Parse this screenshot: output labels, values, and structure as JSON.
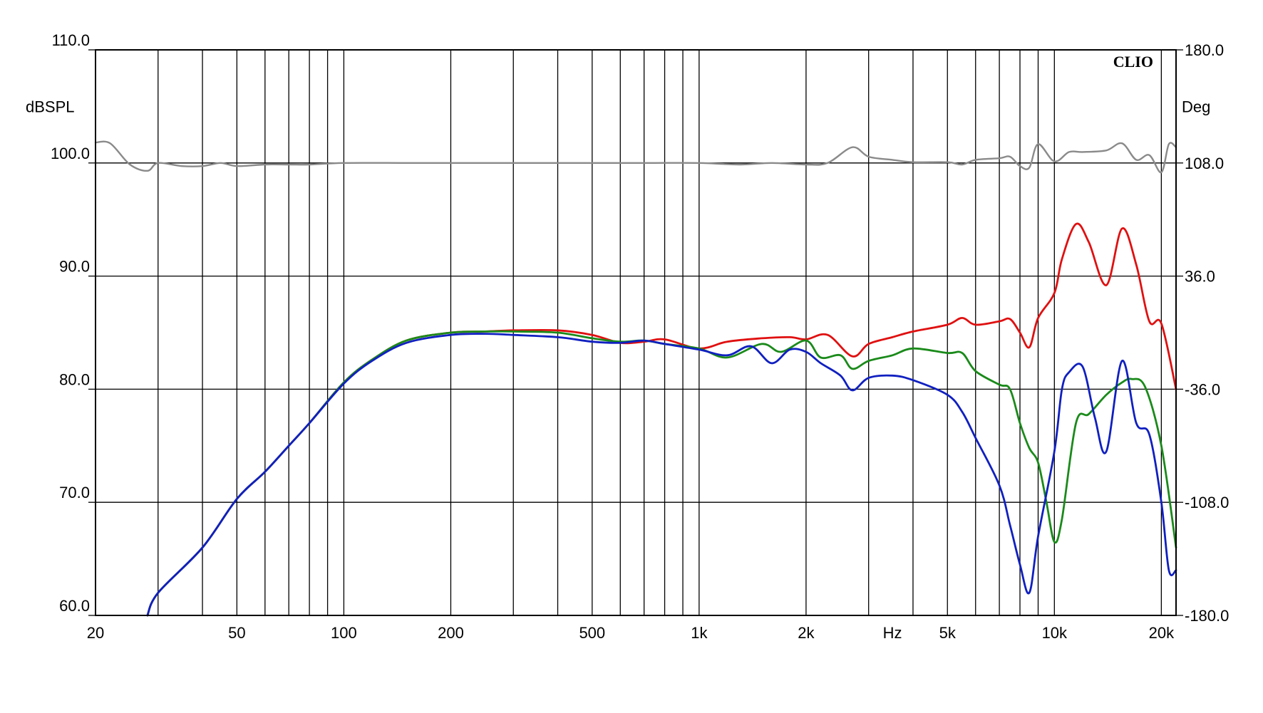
{
  "chart_data": {
    "type": "line",
    "brand": "CLIO",
    "left_axis": {
      "unit": "dBSPL",
      "range": [
        60,
        110
      ],
      "ticks": [
        "60.0",
        "70.0",
        "80.0",
        "90.0",
        "100.0",
        "110.0"
      ],
      "values": [
        60,
        70,
        80,
        90,
        100,
        110
      ]
    },
    "right_axis": {
      "unit": "Deg",
      "range": [
        -180,
        180
      ],
      "ticks": [
        "-180.0",
        "-108.0",
        "-36.0",
        "36.0",
        "108.0",
        "180.0"
      ],
      "values": [
        -180,
        -108,
        -36,
        36,
        108,
        180
      ]
    },
    "x_axis": {
      "unit": "Hz",
      "scale": "log",
      "range": [
        20,
        22000
      ],
      "tick_labels": [
        {
          "value": 20,
          "label": "20"
        },
        {
          "value": 50,
          "label": "50"
        },
        {
          "value": 100,
          "label": "100"
        },
        {
          "value": 200,
          "label": "200"
        },
        {
          "value": 500,
          "label": "500"
        },
        {
          "value": 1000,
          "label": "1k"
        },
        {
          "value": 2000,
          "label": "2k"
        },
        {
          "value": 5000,
          "label": "5k"
        },
        {
          "value": 10000,
          "label": "10k"
        },
        {
          "value": 20000,
          "label": "20k"
        }
      ],
      "gridlines": [
        20,
        30,
        40,
        50,
        60,
        70,
        80,
        90,
        100,
        200,
        300,
        400,
        500,
        600,
        700,
        800,
        900,
        1000,
        2000,
        3000,
        4000,
        5000,
        6000,
        7000,
        8000,
        9000,
        10000,
        20000,
        22000
      ]
    },
    "grid": true,
    "series": [
      {
        "color": "#e01010",
        "axis": "left",
        "points": [
          [
            28,
            60
          ],
          [
            30,
            62
          ],
          [
            40,
            66
          ],
          [
            50,
            70.3
          ],
          [
            60,
            72.7
          ],
          [
            70,
            75
          ],
          [
            80,
            77
          ],
          [
            100,
            80.6
          ],
          [
            120,
            82.6
          ],
          [
            150,
            84.3
          ],
          [
            200,
            85
          ],
          [
            250,
            85.1
          ],
          [
            300,
            85.2
          ],
          [
            400,
            85.2
          ],
          [
            500,
            84.8
          ],
          [
            600,
            84.1
          ],
          [
            700,
            84.2
          ],
          [
            800,
            84.4
          ],
          [
            1000,
            83.6
          ],
          [
            1200,
            84.2
          ],
          [
            1500,
            84.5
          ],
          [
            1800,
            84.6
          ],
          [
            2000,
            84.4
          ],
          [
            2300,
            84.8
          ],
          [
            2700,
            82.9
          ],
          [
            3000,
            84.0
          ],
          [
            3500,
            84.6
          ],
          [
            4000,
            85.1
          ],
          [
            5000,
            85.7
          ],
          [
            5500,
            86.3
          ],
          [
            6000,
            85.7
          ],
          [
            7000,
            86.0
          ],
          [
            7500,
            86.2
          ],
          [
            8000,
            85.0
          ],
          [
            8500,
            83.7
          ],
          [
            9000,
            86.3
          ],
          [
            10000,
            88.5
          ],
          [
            10500,
            91.5
          ],
          [
            11500,
            94.6
          ],
          [
            12500,
            93.0
          ],
          [
            14000,
            89.2
          ],
          [
            15500,
            94.2
          ],
          [
            17000,
            91.0
          ],
          [
            18500,
            86.0
          ],
          [
            20000,
            85.8
          ],
          [
            22000,
            80.0
          ]
        ]
      },
      {
        "color": "#1a8a1a",
        "axis": "left",
        "points": [
          [
            28,
            60
          ],
          [
            30,
            62
          ],
          [
            40,
            66
          ],
          [
            50,
            70.3
          ],
          [
            60,
            72.7
          ],
          [
            70,
            75
          ],
          [
            80,
            77
          ],
          [
            100,
            80.6
          ],
          [
            120,
            82.6
          ],
          [
            150,
            84.3
          ],
          [
            200,
            85
          ],
          [
            250,
            85.1
          ],
          [
            300,
            85.1
          ],
          [
            400,
            85
          ],
          [
            500,
            84.5
          ],
          [
            600,
            84.2
          ],
          [
            700,
            84.3
          ],
          [
            800,
            84
          ],
          [
            1000,
            83.6
          ],
          [
            1200,
            82.8
          ],
          [
            1500,
            84
          ],
          [
            1700,
            83.3
          ],
          [
            2000,
            84.3
          ],
          [
            2200,
            82.8
          ],
          [
            2500,
            83
          ],
          [
            2700,
            81.8
          ],
          [
            3000,
            82.5
          ],
          [
            3500,
            83
          ],
          [
            4000,
            83.6
          ],
          [
            5000,
            83.2
          ],
          [
            5500,
            83.2
          ],
          [
            6000,
            81.6
          ],
          [
            7000,
            80.4
          ],
          [
            7500,
            80
          ],
          [
            8000,
            77.0
          ],
          [
            8500,
            74.8
          ],
          [
            9000,
            73.5
          ],
          [
            9500,
            70
          ],
          [
            10000,
            66.5
          ],
          [
            10500,
            68.5
          ],
          [
            11500,
            77.0
          ],
          [
            12500,
            77.8
          ],
          [
            14000,
            79.5
          ],
          [
            15500,
            80.6
          ],
          [
            16500,
            80.9
          ],
          [
            18000,
            80.2
          ],
          [
            20000,
            75.0
          ],
          [
            22000,
            66.0
          ]
        ]
      },
      {
        "color": "#1020c0",
        "axis": "left",
        "points": [
          [
            28,
            60
          ],
          [
            30,
            62
          ],
          [
            40,
            66
          ],
          [
            50,
            70.3
          ],
          [
            60,
            72.7
          ],
          [
            70,
            75
          ],
          [
            80,
            77
          ],
          [
            100,
            80.5
          ],
          [
            120,
            82.5
          ],
          [
            150,
            84.1
          ],
          [
            200,
            84.8
          ],
          [
            250,
            84.9
          ],
          [
            300,
            84.8
          ],
          [
            400,
            84.6
          ],
          [
            500,
            84.2
          ],
          [
            600,
            84.1
          ],
          [
            700,
            84.3
          ],
          [
            800,
            84
          ],
          [
            1000,
            83.5
          ],
          [
            1200,
            83
          ],
          [
            1400,
            83.8
          ],
          [
            1600,
            82.3
          ],
          [
            1800,
            83.5
          ],
          [
            2000,
            83.3
          ],
          [
            2200,
            82.3
          ],
          [
            2500,
            81.2
          ],
          [
            2700,
            79.9
          ],
          [
            3000,
            81.0
          ],
          [
            3500,
            81.2
          ],
          [
            4000,
            80.8
          ],
          [
            5000,
            79.5
          ],
          [
            5500,
            78
          ],
          [
            6000,
            75.7
          ],
          [
            7000,
            71.5
          ],
          [
            7500,
            68
          ],
          [
            8000,
            64.5
          ],
          [
            8500,
            62.0
          ],
          [
            9000,
            67.0
          ],
          [
            10000,
            74.5
          ],
          [
            10500,
            80
          ],
          [
            11000,
            81.5
          ],
          [
            12000,
            82.0
          ],
          [
            13000,
            77.5
          ],
          [
            14000,
            74.5
          ],
          [
            15500,
            82.5
          ],
          [
            17000,
            77.0
          ],
          [
            18500,
            76.0
          ],
          [
            20000,
            70
          ],
          [
            21000,
            64.0
          ],
          [
            22000,
            64.0
          ]
        ]
      },
      {
        "color": "#8a8a8a",
        "axis": "right",
        "points": [
          [
            20,
            121
          ],
          [
            22,
            120.5
          ],
          [
            25,
            107
          ],
          [
            28,
            103
          ],
          [
            30,
            108
          ],
          [
            35,
            106
          ],
          [
            40,
            106
          ],
          [
            45,
            108
          ],
          [
            50,
            106
          ],
          [
            60,
            107
          ],
          [
            70,
            107
          ],
          [
            80,
            107
          ],
          [
            100,
            108
          ],
          [
            150,
            108
          ],
          [
            200,
            108
          ],
          [
            400,
            108
          ],
          [
            700,
            108
          ],
          [
            1000,
            108
          ],
          [
            1300,
            107
          ],
          [
            1600,
            108
          ],
          [
            2000,
            107
          ],
          [
            2300,
            108
          ],
          [
            2700,
            118
          ],
          [
            3000,
            112
          ],
          [
            3500,
            110
          ],
          [
            4000,
            108.5
          ],
          [
            5000,
            108.5
          ],
          [
            5500,
            107
          ],
          [
            6000,
            110
          ],
          [
            7000,
            111
          ],
          [
            7500,
            112
          ],
          [
            8000,
            106
          ],
          [
            8500,
            105
          ],
          [
            9000,
            120
          ],
          [
            10000,
            109
          ],
          [
            11000,
            115
          ],
          [
            12000,
            115
          ],
          [
            14000,
            116
          ],
          [
            15500,
            120.5
          ],
          [
            17000,
            110
          ],
          [
            18500,
            113
          ],
          [
            20000,
            102
          ],
          [
            21000,
            120
          ],
          [
            22000,
            118
          ]
        ]
      }
    ]
  }
}
